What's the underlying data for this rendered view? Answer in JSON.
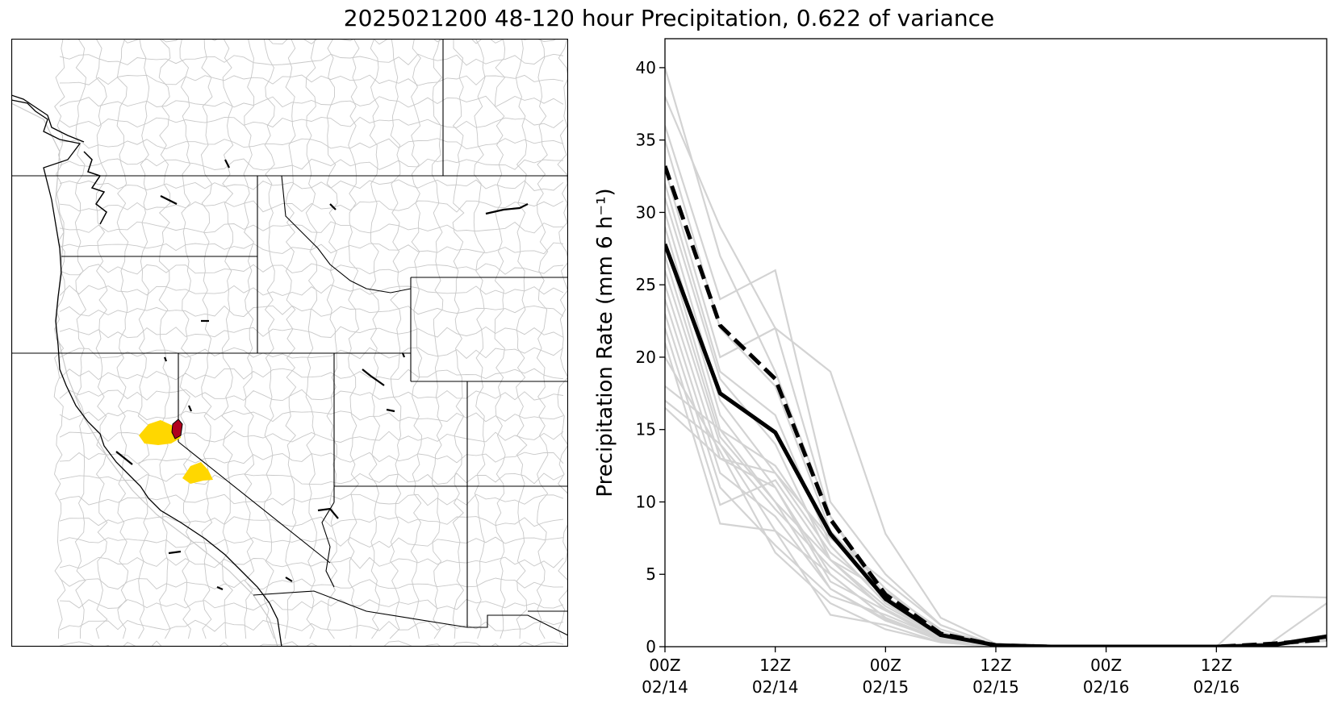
{
  "title": "2025021200 48-120 hour Precipitation, 0.622 of variance",
  "map": {
    "highlight_colors": {
      "primary": "#ffd700",
      "secondary": "#b0001e"
    },
    "background": "#ffffff",
    "basin_line_color": "#c8c8c8",
    "boundary_color": "#000000"
  },
  "chart_data": {
    "type": "line",
    "ylabel": "Precipitation Rate (mm 6 h⁻¹)",
    "ylim": [
      0,
      42
    ],
    "xlim": [
      "2025-02-14T00:00Z",
      "2025-02-17T00:00Z"
    ],
    "x": [
      "2025-02-14T00:00Z",
      "2025-02-14T06:00Z",
      "2025-02-14T12:00Z",
      "2025-02-14T18:00Z",
      "2025-02-15T00:00Z",
      "2025-02-15T06:00Z",
      "2025-02-15T12:00Z",
      "2025-02-15T18:00Z",
      "2025-02-16T00:00Z",
      "2025-02-16T06:00Z",
      "2025-02-16T12:00Z",
      "2025-02-16T18:00Z",
      "2025-02-17T00:00Z"
    ],
    "xticks": [
      {
        "line1": "00Z",
        "line2": "02/14",
        "x": "2025-02-14T00:00Z"
      },
      {
        "line1": "12Z",
        "line2": "02/14",
        "x": "2025-02-14T12:00Z"
      },
      {
        "line1": "00Z",
        "line2": "02/15",
        "x": "2025-02-15T00:00Z"
      },
      {
        "line1": "12Z",
        "line2": "02/15",
        "x": "2025-02-15T12:00Z"
      },
      {
        "line1": "00Z",
        "line2": "02/16",
        "x": "2025-02-16T00:00Z"
      },
      {
        "line1": "12Z",
        "line2": "02/16",
        "x": "2025-02-16T12:00Z"
      }
    ],
    "yticks": [
      0,
      5,
      10,
      15,
      20,
      25,
      30,
      35,
      40
    ],
    "ensemble_color": "#d3d3d3",
    "ensemble": [
      [
        40.0,
        27.0,
        19.0,
        9.0,
        3.5,
        0.8,
        0.1,
        0.0,
        0.0,
        0.0,
        0.0,
        3.5,
        3.4
      ],
      [
        38.0,
        29.0,
        22.0,
        19.0,
        7.8,
        2.0,
        0.2,
        0.0,
        0.0,
        0.0,
        0.0,
        0.2,
        0.5
      ],
      [
        36.0,
        24.0,
        26.0,
        10.0,
        5.0,
        1.5,
        0.1,
        0.0,
        0.0,
        0.0,
        0.0,
        0.3,
        3.0
      ],
      [
        35.0,
        22.0,
        18.0,
        8.0,
        4.0,
        1.0,
        0.0,
        0.0,
        0.0,
        0.0,
        0.0,
        0.1,
        0.6
      ],
      [
        33.0,
        20.0,
        22.0,
        9.0,
        3.0,
        0.9,
        0.1,
        0.0,
        0.0,
        0.0,
        0.0,
        0.2,
        0.8
      ],
      [
        32.0,
        19.0,
        16.0,
        7.0,
        3.0,
        0.7,
        0.0,
        0.0,
        0.0,
        0.0,
        0.0,
        0.1,
        0.5
      ],
      [
        31.0,
        18.5,
        14.0,
        6.0,
        2.5,
        0.6,
        0.0,
        0.0,
        0.0,
        0.0,
        0.0,
        0.2,
        0.7
      ],
      [
        30.0,
        17.0,
        12.0,
        6.5,
        3.5,
        0.8,
        0.1,
        0.0,
        0.0,
        0.0,
        0.0,
        0.1,
        0.4
      ],
      [
        29.0,
        16.0,
        11.0,
        5.0,
        2.0,
        0.5,
        0.0,
        0.0,
        0.0,
        0.0,
        0.0,
        0.2,
        0.6
      ],
      [
        28.0,
        15.0,
        12.5,
        7.0,
        3.0,
        0.9,
        0.0,
        0.0,
        0.0,
        0.0,
        0.0,
        0.1,
        0.5
      ],
      [
        27.0,
        14.5,
        10.0,
        6.0,
        2.8,
        0.7,
        0.0,
        0.0,
        0.0,
        0.0,
        0.0,
        0.2,
        0.8
      ],
      [
        26.0,
        14.0,
        8.0,
        5.0,
        2.0,
        0.4,
        0.0,
        0.0,
        0.0,
        0.0,
        0.0,
        0.1,
        0.5
      ],
      [
        25.0,
        13.0,
        11.0,
        4.5,
        2.5,
        0.5,
        0.0,
        0.0,
        0.0,
        0.0,
        0.0,
        0.1,
        0.4
      ],
      [
        24.0,
        12.0,
        9.0,
        4.0,
        1.8,
        0.5,
        0.0,
        0.0,
        0.0,
        0.0,
        0.0,
        0.2,
        0.6
      ],
      [
        23.0,
        11.0,
        7.0,
        3.5,
        2.2,
        0.6,
        0.0,
        0.0,
        0.0,
        0.0,
        0.0,
        0.1,
        0.5
      ],
      [
        22.0,
        9.8,
        11.5,
        6.0,
        3.8,
        1.2,
        0.1,
        0.0,
        0.0,
        0.0,
        0.0,
        0.2,
        0.7
      ],
      [
        21.0,
        8.5,
        8.0,
        2.2,
        1.5,
        0.3,
        0.0,
        0.0,
        0.0,
        0.0,
        0.0,
        0.1,
        0.4
      ],
      [
        20.0,
        13.5,
        6.5,
        3.0,
        1.2,
        0.3,
        0.0,
        0.0,
        0.0,
        0.0,
        0.0,
        0.1,
        0.5
      ],
      [
        18.0,
        15.0,
        10.0,
        4.0,
        1.9,
        0.4,
        0.0,
        0.0,
        0.0,
        0.0,
        0.0,
        0.2,
        0.6
      ],
      [
        17.0,
        14.0,
        9.5,
        5.5,
        2.6,
        0.6,
        0.0,
        0.0,
        0.0,
        0.0,
        0.0,
        0.1,
        0.5
      ],
      [
        16.5,
        13.0,
        12.0,
        7.5,
        4.5,
        1.5,
        0.1,
        0.0,
        0.0,
        0.0,
        0.0,
        0.2,
        0.8
      ]
    ],
    "series": [
      {
        "values": [
          27.8,
          17.5,
          14.8,
          7.8,
          3.3,
          0.8,
          0.1,
          0.0,
          0.0,
          0.0,
          0.0,
          0.1,
          0.7
        ],
        "color": "#000000",
        "style": "solid"
      },
      {
        "values": [
          33.2,
          22.2,
          18.5,
          8.8,
          3.6,
          0.9,
          0.1,
          0.0,
          0.0,
          0.0,
          0.0,
          0.2,
          0.5
        ],
        "color": "#000000",
        "style": "dashed"
      }
    ]
  }
}
